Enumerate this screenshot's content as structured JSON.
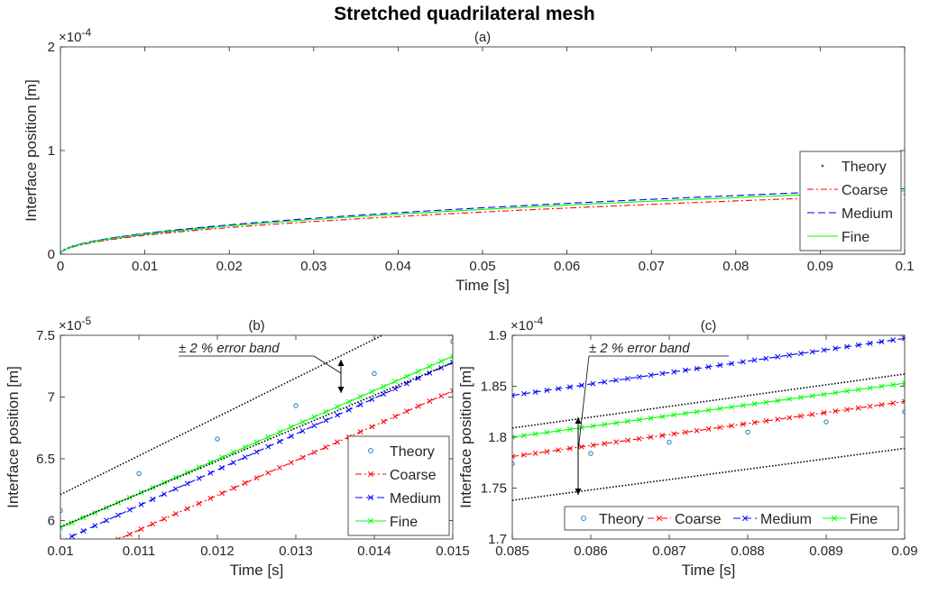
{
  "figure": {
    "title": "Stretched quadrilateral mesh"
  },
  "colors": {
    "theory": "#0072BD",
    "coarse": "#FF0000",
    "medium": "#0000FF",
    "fine": "#00FF00",
    "band": "#000000",
    "axis": "#262626"
  },
  "chart_data": [
    {
      "id": "a",
      "type": "line",
      "title": "(a)",
      "xlabel": "Time [s]",
      "ylabel": "Interface position [m]",
      "exponent": "×10^-4",
      "exponent_base": "×10",
      "exponent_power": "-4",
      "xlim": [
        0,
        0.1
      ],
      "ylim": [
        0,
        2
      ],
      "xticks": [
        0,
        0.01,
        0.02,
        0.03,
        0.04,
        0.05,
        0.06,
        0.07,
        0.08,
        0.09,
        0.1
      ],
      "xtick_labels": [
        "0",
        "0.01",
        "0.02",
        "0.03",
        "0.04",
        "0.05",
        "0.06",
        "0.07",
        "0.08",
        "0.09",
        "0.1"
      ],
      "yticks": [
        0,
        1,
        2
      ],
      "ytick_labels": [
        "0",
        "1",
        "2"
      ],
      "legend": {
        "position": "bottom-right",
        "entries": [
          "Theory",
          "Coarse",
          "Medium",
          "Fine"
        ]
      },
      "series": [
        {
          "name": "Theory",
          "style": "markers",
          "marker": "point",
          "model": {
            "k": 0.6135,
            "p": 0.5
          },
          "x_range": [
            0.0005,
            0.018
          ],
          "n": 36
        },
        {
          "name": "Coarse",
          "style": "dashdot",
          "model": {
            "k": 0.5745,
            "p": 0.5,
            "x0": 0.0
          },
          "x_range": [
            0,
            0.1
          ]
        },
        {
          "name": "Medium",
          "style": "dashed",
          "model": {
            "k": 0.6325,
            "p": 0.5
          },
          "x_range": [
            0,
            0.1
          ]
        },
        {
          "name": "Fine",
          "style": "solid",
          "model": {
            "k": 0.6105,
            "p": 0.5
          },
          "x_range": [
            0,
            0.1
          ]
        }
      ]
    },
    {
      "id": "b",
      "type": "line",
      "title": "(b)",
      "xlabel": "Time [s]",
      "ylabel": "Interface position [m]",
      "exponent": "×10^-5",
      "exponent_base": "×10",
      "exponent_power": "-5",
      "xlim": [
        0.01,
        0.015
      ],
      "ylim": [
        5.85,
        7.5
      ],
      "xticks": [
        0.01,
        0.011,
        0.012,
        0.013,
        0.014,
        0.015
      ],
      "xtick_labels": [
        "0.01",
        "0.011",
        "0.012",
        "0.013",
        "0.014",
        "0.015"
      ],
      "yticks": [
        6,
        6.5,
        7,
        7.5
      ],
      "ytick_labels": [
        "6",
        "6.5",
        "7",
        "7.5"
      ],
      "annotation": "± 2 % error band",
      "legend": {
        "position": "bottom-right",
        "entries": [
          "Theory",
          "Coarse",
          "Medium",
          "Fine"
        ]
      },
      "series": [
        {
          "name": "Theory",
          "style": "markers",
          "marker": "circle",
          "x": [
            0.01,
            0.011,
            0.012,
            0.013,
            0.014,
            0.015
          ],
          "y": [
            6.08,
            6.38,
            6.66,
            6.93,
            7.19,
            7.45
          ]
        },
        {
          "name": "Coarse",
          "style": "dashdot",
          "marker": "x",
          "x": [
            0.01,
            0.015
          ],
          "y": [
            5.64,
            7.05
          ]
        },
        {
          "name": "Medium",
          "style": "dashed",
          "marker": "x",
          "x": [
            0.01,
            0.015
          ],
          "y": [
            5.83,
            7.28
          ]
        },
        {
          "name": "Fine",
          "style": "solid",
          "marker": "x",
          "x": [
            0.01,
            0.015
          ],
          "y": [
            5.94,
            7.33
          ]
        },
        {
          "name": "Band upper",
          "style": "dotted",
          "x": [
            0.01,
            0.0141
          ],
          "y": [
            6.21,
            7.5
          ]
        },
        {
          "name": "Band lower",
          "style": "dotted",
          "x": [
            0.01,
            0.015
          ],
          "y": [
            5.95,
            7.28
          ]
        }
      ]
    },
    {
      "id": "c",
      "type": "line",
      "title": "(c)",
      "xlabel": "Time [s]",
      "ylabel": "Interface position [m]",
      "exponent": "×10^-4",
      "exponent_base": "×10",
      "exponent_power": "-4",
      "xlim": [
        0.085,
        0.09
      ],
      "ylim": [
        1.7,
        1.9
      ],
      "xticks": [
        0.085,
        0.086,
        0.087,
        0.088,
        0.089,
        0.09
      ],
      "xtick_labels": [
        "0.085",
        "0.086",
        "0.087",
        "0.088",
        "0.089",
        "0.09"
      ],
      "yticks": [
        1.7,
        1.75,
        1.8,
        1.85,
        1.9
      ],
      "ytick_labels": [
        "1.7",
        "1.75",
        "1.8",
        "1.85",
        "1.9"
      ],
      "annotation": "± 2 % error band",
      "legend": {
        "position": "bottom",
        "entries": [
          "Theory",
          "Coarse",
          "Medium",
          "Fine"
        ]
      },
      "series": [
        {
          "name": "Theory",
          "style": "markers",
          "marker": "circle",
          "x": [
            0.085,
            0.086,
            0.087,
            0.088,
            0.089,
            0.09
          ],
          "y": [
            1.774,
            1.784,
            1.795,
            1.805,
            1.815,
            1.825
          ]
        },
        {
          "name": "Coarse",
          "style": "dashdot",
          "marker": "x",
          "x": [
            0.085,
            0.09
          ],
          "y": [
            1.781,
            1.835
          ]
        },
        {
          "name": "Medium",
          "style": "dashed",
          "marker": "x",
          "x": [
            0.085,
            0.09
          ],
          "y": [
            1.841,
            1.897
          ]
        },
        {
          "name": "Fine",
          "style": "solid",
          "marker": "x",
          "x": [
            0.085,
            0.09
          ],
          "y": [
            1.8,
            1.853
          ]
        },
        {
          "name": "Band upper",
          "style": "dotted",
          "x": [
            0.085,
            0.09
          ],
          "y": [
            1.809,
            1.862
          ]
        },
        {
          "name": "Band lower",
          "style": "dotted",
          "x": [
            0.085,
            0.09
          ],
          "y": [
            1.738,
            1.789
          ]
        }
      ]
    }
  ]
}
